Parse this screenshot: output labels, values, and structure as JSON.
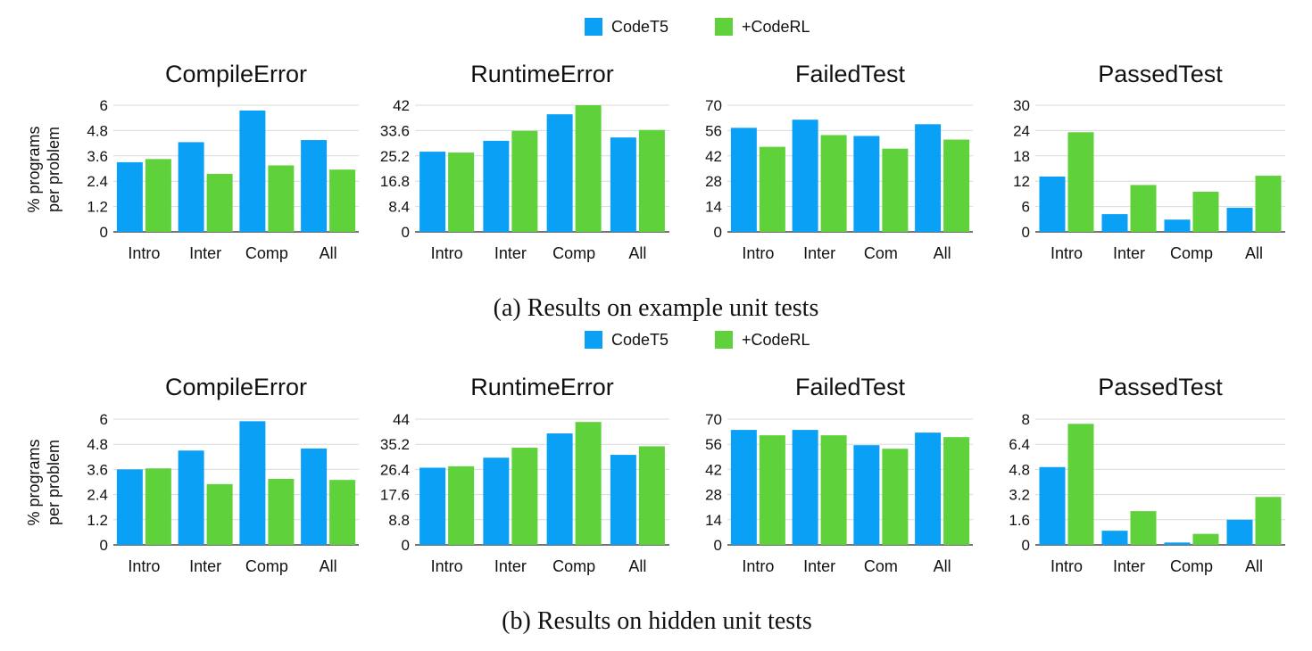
{
  "colors": {
    "codet5": "#0aa0f6",
    "coderl": "#5fd13a",
    "grid": "#d9d9d9",
    "axis": "#222222",
    "text": "#111111"
  },
  "groups": [
    {
      "caption": "(a) Results on example unit tests",
      "legend": [
        "CodeT5",
        "+CodeRL"
      ],
      "ylabel_line1": "% programs",
      "ylabel_line2": "per problem"
    },
    {
      "caption": "(b) Results on hidden unit tests",
      "legend": [
        "CodeT5",
        "+CodeRL"
      ],
      "ylabel_line1": "% programs",
      "ylabel_line2": "per problem"
    }
  ],
  "chart_data": [
    {
      "type": "bar",
      "title": "CompileError",
      "categories": [
        "Intro",
        "Inter",
        "Comp",
        "All"
      ],
      "ylim": [
        0,
        6
      ],
      "yticks": [
        "0",
        "1.2",
        "2.4",
        "3.6",
        "4.8",
        "6"
      ],
      "series": [
        {
          "name": "CodeT5",
          "values": [
            3.3,
            4.25,
            5.75,
            4.35
          ]
        },
        {
          "name": "+CodeRL",
          "values": [
            3.45,
            2.75,
            3.15,
            2.95
          ]
        }
      ]
    },
    {
      "type": "bar",
      "title": "RuntimeError",
      "categories": [
        "Intro",
        "Inter",
        "Comp",
        "All"
      ],
      "ylim": [
        0,
        42
      ],
      "yticks": [
        "0",
        "8.4",
        "16.8",
        "25.2",
        "33.6",
        "42"
      ],
      "series": [
        {
          "name": "CodeT5",
          "values": [
            26.6,
            30.2,
            39.0,
            31.3
          ]
        },
        {
          "name": "+CodeRL",
          "values": [
            26.3,
            33.5,
            42.0,
            33.8
          ]
        }
      ]
    },
    {
      "type": "bar",
      "title": "FailedTest",
      "categories": [
        "Intro",
        "Inter",
        "Com",
        "All"
      ],
      "ylim": [
        0,
        70
      ],
      "yticks": [
        "0",
        "14",
        "28",
        "42",
        "56",
        "70"
      ],
      "series": [
        {
          "name": "CodeT5",
          "values": [
            57.5,
            62.0,
            53.0,
            59.5
          ]
        },
        {
          "name": "+CodeRL",
          "values": [
            47.0,
            53.5,
            46.0,
            51.0
          ]
        }
      ]
    },
    {
      "type": "bar",
      "title": "PassedTest",
      "categories": [
        "Intro",
        "Inter",
        "Comp",
        "All"
      ],
      "ylim": [
        0,
        30
      ],
      "yticks": [
        "0",
        "6",
        "12",
        "18",
        "24",
        "30"
      ],
      "series": [
        {
          "name": "CodeT5",
          "values": [
            13.1,
            4.2,
            2.9,
            5.7
          ]
        },
        {
          "name": "+CodeRL",
          "values": [
            23.6,
            11.1,
            9.5,
            13.3
          ]
        }
      ]
    },
    {
      "type": "bar",
      "title": "CompileError",
      "categories": [
        "Intro",
        "Inter",
        "Comp",
        "All"
      ],
      "ylim": [
        0,
        6
      ],
      "yticks": [
        "0",
        "1.2",
        "2.4",
        "3.6",
        "4.8",
        "6"
      ],
      "series": [
        {
          "name": "CodeT5",
          "values": [
            3.6,
            4.5,
            5.9,
            4.6
          ]
        },
        {
          "name": "+CodeRL",
          "values": [
            3.65,
            2.9,
            3.15,
            3.1
          ]
        }
      ]
    },
    {
      "type": "bar",
      "title": "RuntimeError",
      "categories": [
        "Intro",
        "Inter",
        "Comp",
        "All"
      ],
      "ylim": [
        0,
        44
      ],
      "yticks": [
        "0",
        "8.8",
        "17.6",
        "26.4",
        "35.2",
        "44"
      ],
      "series": [
        {
          "name": "CodeT5",
          "values": [
            27.0,
            30.5,
            39.0,
            31.5
          ]
        },
        {
          "name": "+CodeRL",
          "values": [
            27.5,
            34.0,
            43.0,
            34.5
          ]
        }
      ]
    },
    {
      "type": "bar",
      "title": "FailedTest",
      "categories": [
        "Intro",
        "Inter",
        "Com",
        "All"
      ],
      "ylim": [
        0,
        70
      ],
      "yticks": [
        "0",
        "14",
        "28",
        "42",
        "56",
        "70"
      ],
      "series": [
        {
          "name": "CodeT5",
          "values": [
            64.0,
            64.0,
            55.5,
            62.5
          ]
        },
        {
          "name": "+CodeRL",
          "values": [
            61.0,
            61.0,
            53.5,
            60.0
          ]
        }
      ]
    },
    {
      "type": "bar",
      "title": "PassedTest",
      "categories": [
        "Intro",
        "Inter",
        "Comp",
        "All"
      ],
      "ylim": [
        0,
        8
      ],
      "yticks": [
        "0",
        "1.6",
        "3.2",
        "4.8",
        "6.4",
        "8"
      ],
      "series": [
        {
          "name": "CodeT5",
          "values": [
            4.95,
            0.9,
            0.15,
            1.6
          ]
        },
        {
          "name": "+CodeRL",
          "values": [
            7.7,
            2.15,
            0.7,
            3.05
          ]
        }
      ]
    }
  ]
}
